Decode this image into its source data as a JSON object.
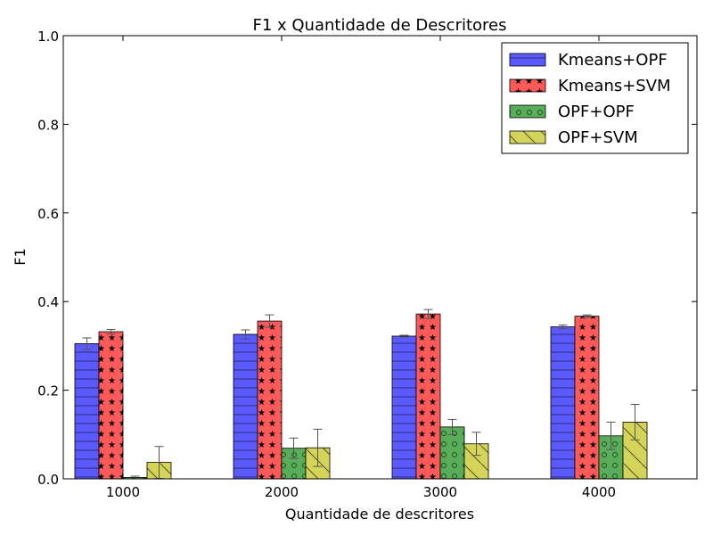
{
  "chart_data": {
    "type": "bar",
    "title": "F1 x Quantidade de Descritores",
    "xlabel": "Quantidade de descritores",
    "ylabel": "F1",
    "categories": [
      "1000",
      "2000",
      "3000",
      "4000"
    ],
    "ylim": [
      0,
      1.0
    ],
    "yticks": [
      "0.0",
      "0.2",
      "0.4",
      "0.6",
      "0.8",
      "1.0"
    ],
    "grid": false,
    "legend_position": "top-right",
    "series": [
      {
        "name": "Kmeans+OPF",
        "color": "#5a5aff",
        "pattern": "horizontal-lines",
        "values": [
          0.305,
          0.326,
          0.322,
          0.343
        ],
        "errors": [
          0.013,
          0.01,
          0.002,
          0.004
        ]
      },
      {
        "name": "Kmeans+SVM",
        "color": "#ff5a5a",
        "pattern": "stars",
        "values": [
          0.332,
          0.356,
          0.372,
          0.367
        ],
        "errors": [
          0.005,
          0.014,
          0.01,
          0.003
        ]
      },
      {
        "name": "OPF+OPF",
        "color": "#5aad5a",
        "pattern": "circles",
        "values": [
          0.003,
          0.069,
          0.117,
          0.097
        ],
        "errors": [
          0.003,
          0.023,
          0.017,
          0.031
        ]
      },
      {
        "name": "OPF+SVM",
        "color": "#d4d45a",
        "pattern": "diagonal-lines",
        "values": [
          0.037,
          0.07,
          0.079,
          0.128
        ],
        "errors": [
          0.036,
          0.042,
          0.026,
          0.04
        ]
      }
    ]
  }
}
